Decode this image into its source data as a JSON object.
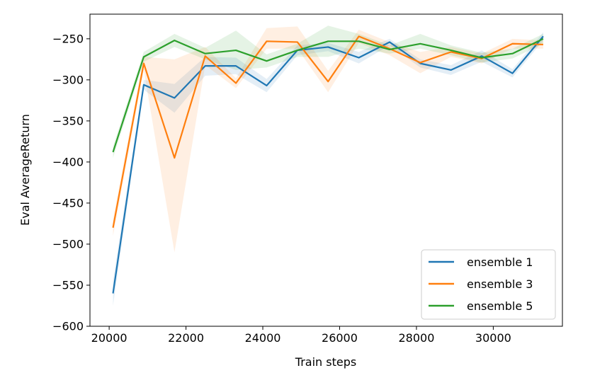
{
  "chart_data": {
    "type": "line",
    "xlabel": "Train steps",
    "ylabel": "Eval AverageReturn",
    "xlim": [
      19500,
      31800
    ],
    "ylim": [
      -600,
      -220
    ],
    "xticks": [
      20000,
      22000,
      24000,
      26000,
      28000,
      30000
    ],
    "yticks": [
      -600,
      -550,
      -500,
      -450,
      -400,
      -350,
      -300,
      -250
    ],
    "grid": false,
    "legend_position": "lower right",
    "x": [
      20100,
      20900,
      21700,
      22500,
      23300,
      24100,
      24900,
      25700,
      26500,
      27300,
      28100,
      28900,
      29700,
      30500,
      31300
    ],
    "series": [
      {
        "name": "ensemble 1",
        "color": "#1f77b4",
        "values": [
          -560,
          -306,
          -322,
          -283,
          -283,
          -307,
          -264,
          -260,
          -273,
          -254,
          -280,
          -288,
          -271,
          -292,
          -247
        ],
        "band_lower": [
          -575,
          -312,
          -340,
          -295,
          -293,
          -315,
          -270,
          -265,
          -280,
          -258,
          -285,
          -294,
          -278,
          -297,
          -252
        ],
        "band_upper": [
          -545,
          -300,
          -305,
          -272,
          -273,
          -299,
          -258,
          -255,
          -266,
          -250,
          -275,
          -282,
          -264,
          -287,
          -242
        ]
      },
      {
        "name": "ensemble 3",
        "color": "#ff7f0e",
        "values": [
          -480,
          -280,
          -395,
          -271,
          -304,
          -253,
          -254,
          -302,
          -247,
          -262,
          -279,
          -266,
          -274,
          -256,
          -257
        ],
        "band_lower": [
          -490,
          -288,
          -510,
          -282,
          -310,
          -262,
          -262,
          -315,
          -255,
          -270,
          -292,
          -272,
          -280,
          -262,
          -262
        ],
        "band_upper": [
          -470,
          -272,
          -275,
          -260,
          -298,
          -237,
          -235,
          -289,
          -239,
          -254,
          -266,
          -260,
          -268,
          -250,
          -252
        ]
      },
      {
        "name": "ensemble 5",
        "color": "#2ca02c",
        "values": [
          -388,
          -272,
          -252,
          -268,
          -264,
          -277,
          -264,
          -253,
          -253,
          -263,
          -256,
          -264,
          -273,
          -268,
          -250
        ],
        "band_lower": [
          -395,
          -278,
          -260,
          -275,
          -288,
          -285,
          -272,
          -272,
          -262,
          -268,
          -262,
          -270,
          -279,
          -274,
          -256
        ],
        "band_upper": [
          -381,
          -266,
          -244,
          -261,
          -240,
          -269,
          -256,
          -234,
          -244,
          -258,
          -244,
          -258,
          -267,
          -262,
          -244
        ]
      }
    ]
  }
}
